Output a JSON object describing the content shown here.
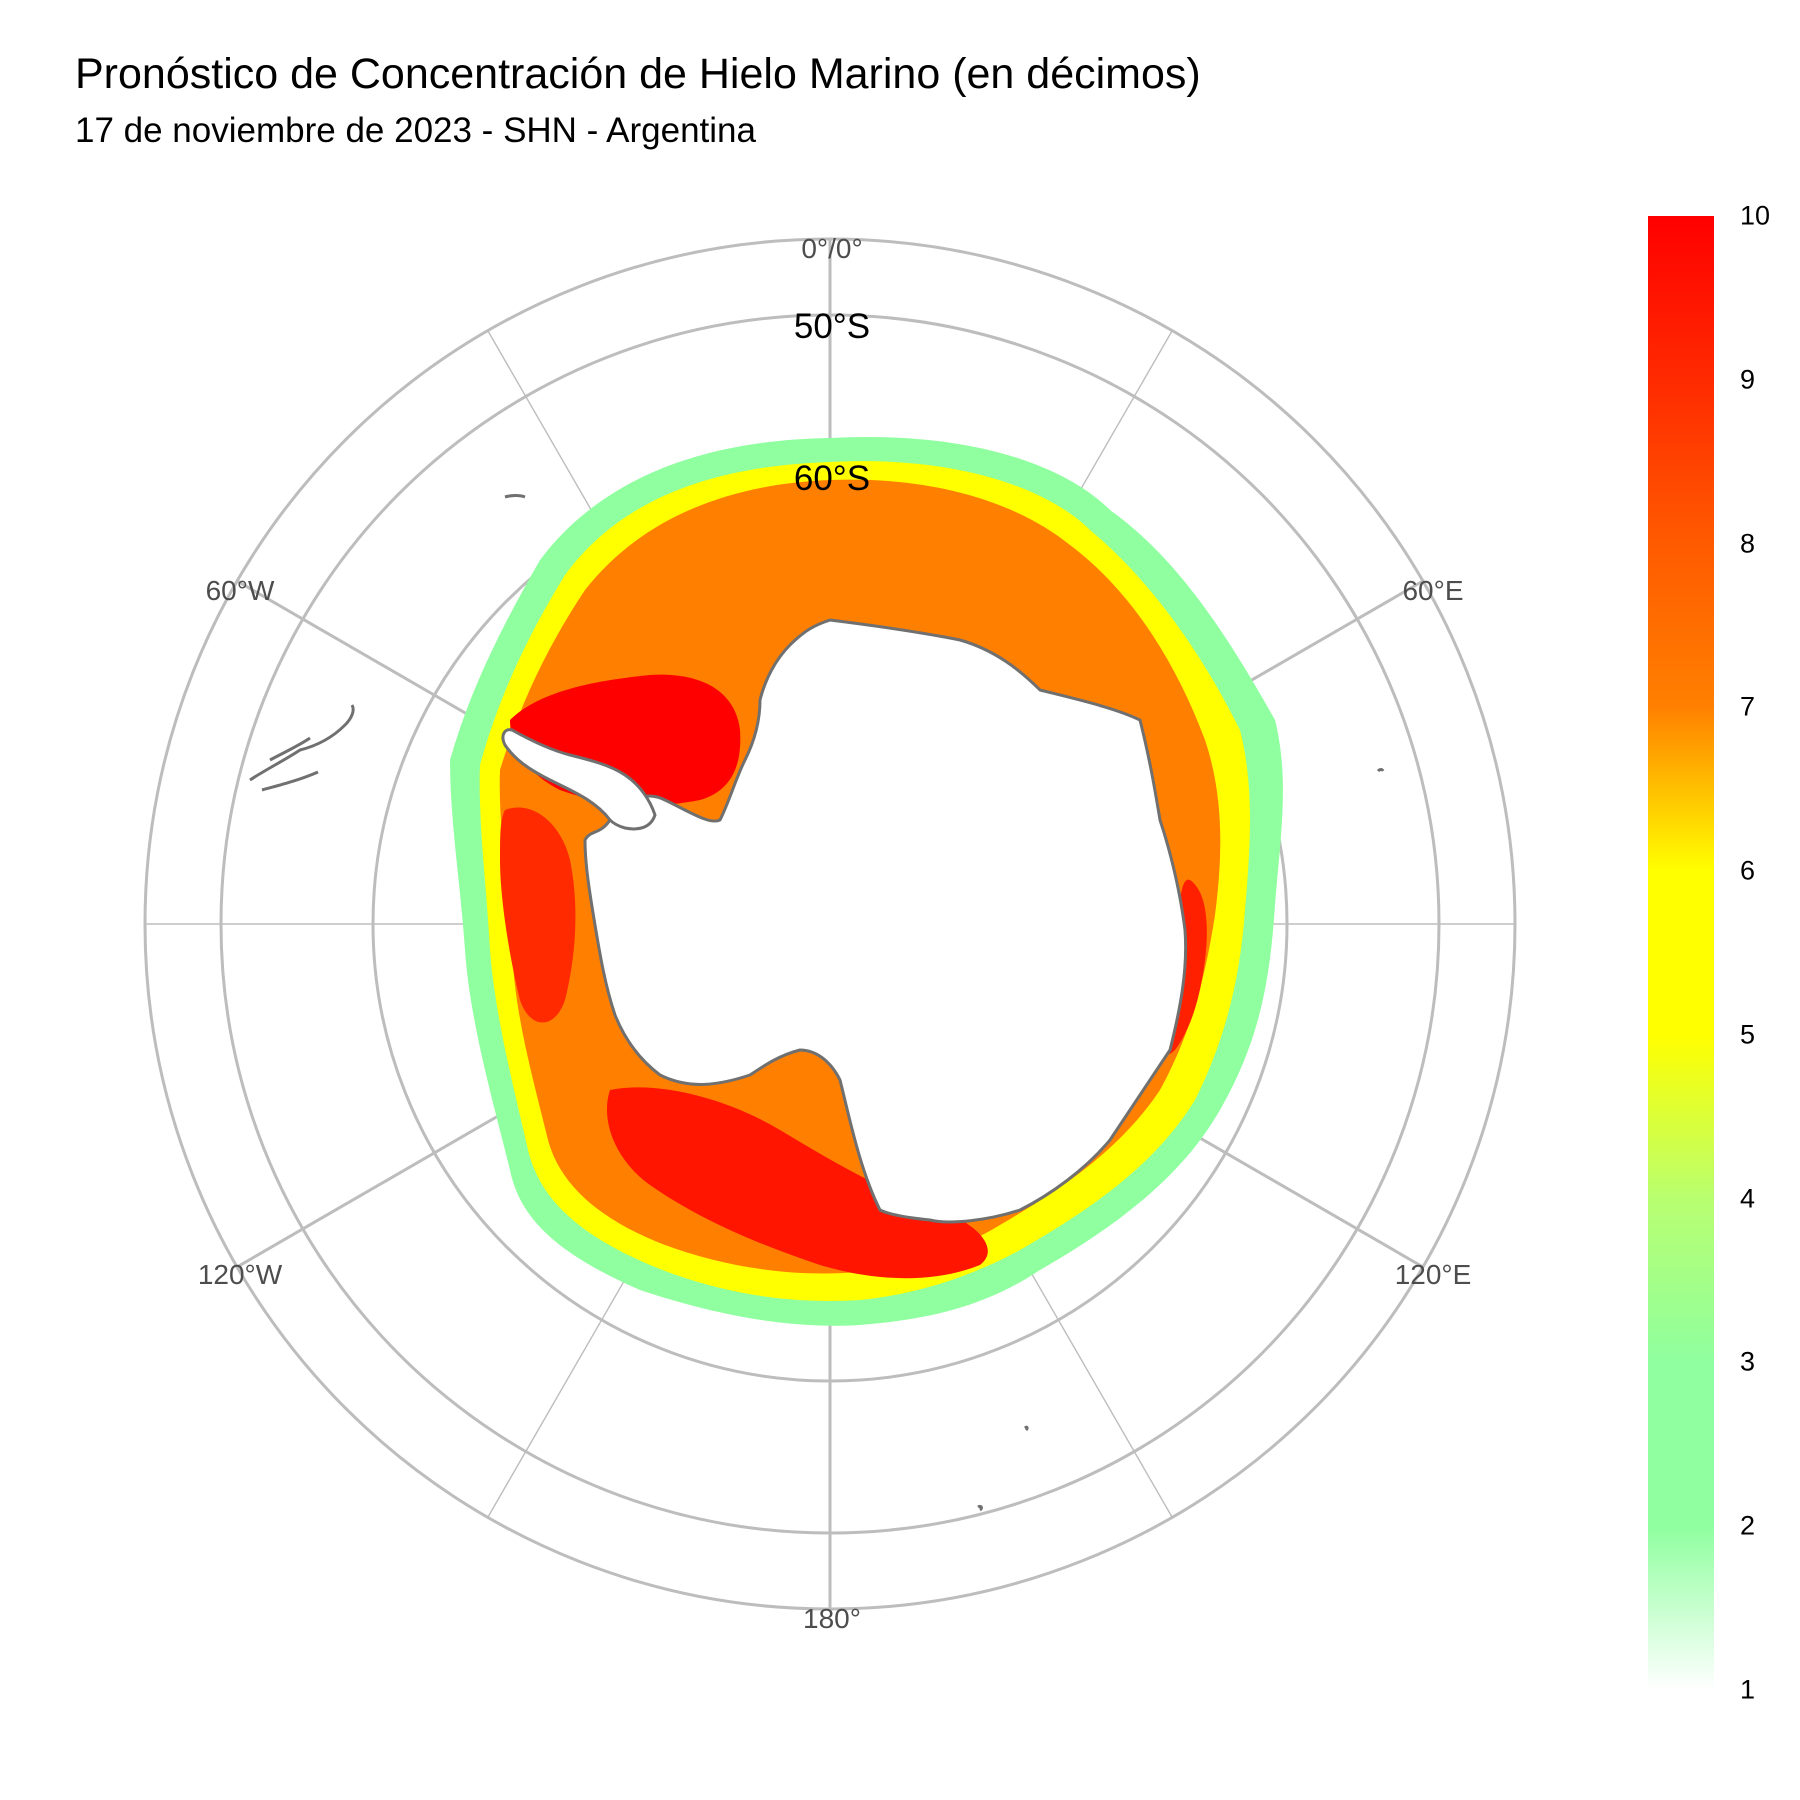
{
  "title": "Pronóstico de Concentración de Hielo Marino (en décimos)",
  "subtitle": "17 de noviembre de 2023 - SHN - Argentina",
  "map": {
    "projection": "south-polar-stereographic",
    "longitude_labels": [
      "0°/0°",
      "60°E",
      "120°E",
      "180°",
      "120°W",
      "60°W"
    ],
    "latitude_labels": [
      "50°S",
      "60°S"
    ],
    "ice_colors": {
      "very_low": "#c8ffd2",
      "low": "#8fff9f",
      "medium": "#ffff00",
      "high": "#ff7f00",
      "very_high": "#ff0000",
      "land": "#ffffff",
      "coast": "#707070",
      "grid": "#bdbdbd"
    }
  },
  "legend": {
    "title": "",
    "min": 1,
    "max": 10,
    "ticks": [
      "10",
      "9",
      "8",
      "7",
      "6",
      "5",
      "4",
      "3",
      "2",
      "1"
    ],
    "colors": [
      "#ff0000",
      "#ff2a00",
      "#ff5a00",
      "#ff8000",
      "#ffff00",
      "#ffff00",
      "#b8ff70",
      "#8fff9f",
      "#8fff9f",
      "#ffffff"
    ]
  }
}
